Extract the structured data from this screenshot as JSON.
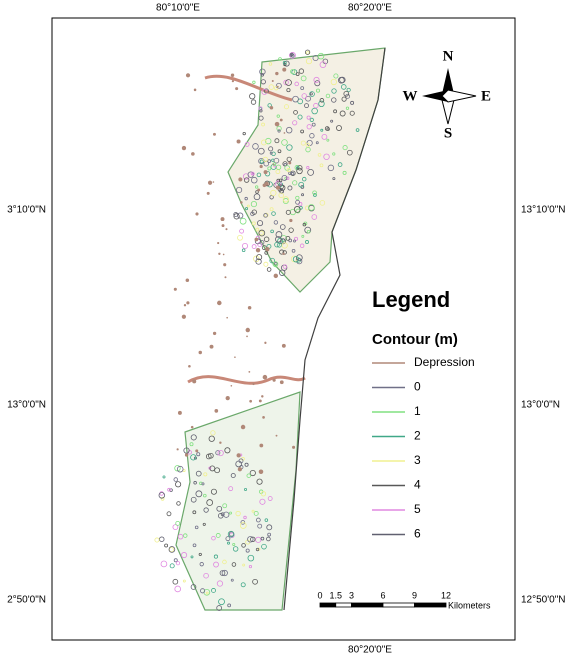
{
  "axes": {
    "top": [
      "80°10'0\"E",
      "80°20'0\"E"
    ],
    "bottom": [
      "80°20'0\"E"
    ],
    "left": [
      "3°10'0\"N",
      "13°0'0\"N",
      "2°50'0\"N"
    ],
    "right": [
      "13°10'0\"N",
      "13°0'0\"N",
      "12°50'0\"N"
    ]
  },
  "compass": {
    "north": "N",
    "south": "S",
    "east": "E",
    "west": "W"
  },
  "legend": {
    "title": "Legend",
    "subtitle": "Contour (m)",
    "items": [
      {
        "label": "Depression",
        "color": "#b08878"
      },
      {
        "label": "0",
        "color": "#707088"
      },
      {
        "label": "1",
        "color": "#80e080"
      },
      {
        "label": "2",
        "color": "#40a888"
      },
      {
        "label": "3",
        "color": "#f0f090"
      },
      {
        "label": "4",
        "color": "#585858"
      },
      {
        "label": "5",
        "color": "#e088e0"
      },
      {
        "label": "6",
        "color": "#606070"
      }
    ]
  },
  "scale_bar": {
    "ticks": [
      0,
      1.5,
      3,
      6,
      9,
      12
    ],
    "unit": "Kilometers"
  }
}
